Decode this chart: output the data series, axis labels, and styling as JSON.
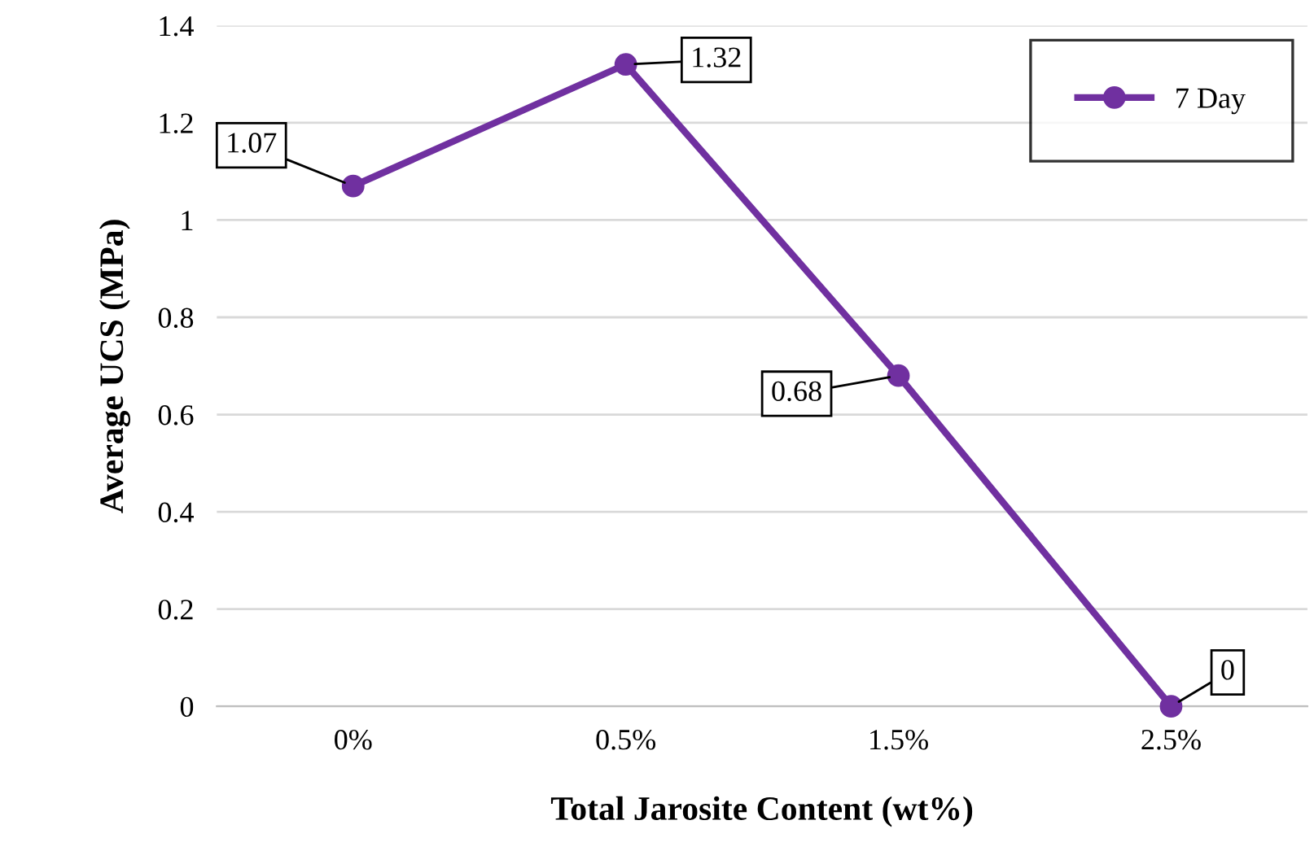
{
  "chart_data": {
    "type": "line",
    "xlabel": "Total Jarosite Content (wt%)",
    "ylabel": "Average UCS (MPa)",
    "categories": [
      "0%",
      "0.5%",
      "1.5%",
      "2.5%"
    ],
    "series": [
      {
        "name": "7 Day",
        "color": "#7030a0",
        "values": [
          1.07,
          1.32,
          0.68,
          0
        ]
      }
    ],
    "ylim": [
      0,
      1.4
    ],
    "yticks": [
      0,
      0.2,
      0.4,
      0.6,
      0.8,
      1,
      1.2,
      1.4
    ],
    "grid": "y",
    "legend": "top right",
    "marker": "circle",
    "line_style": "solid",
    "data_labels": true
  }
}
